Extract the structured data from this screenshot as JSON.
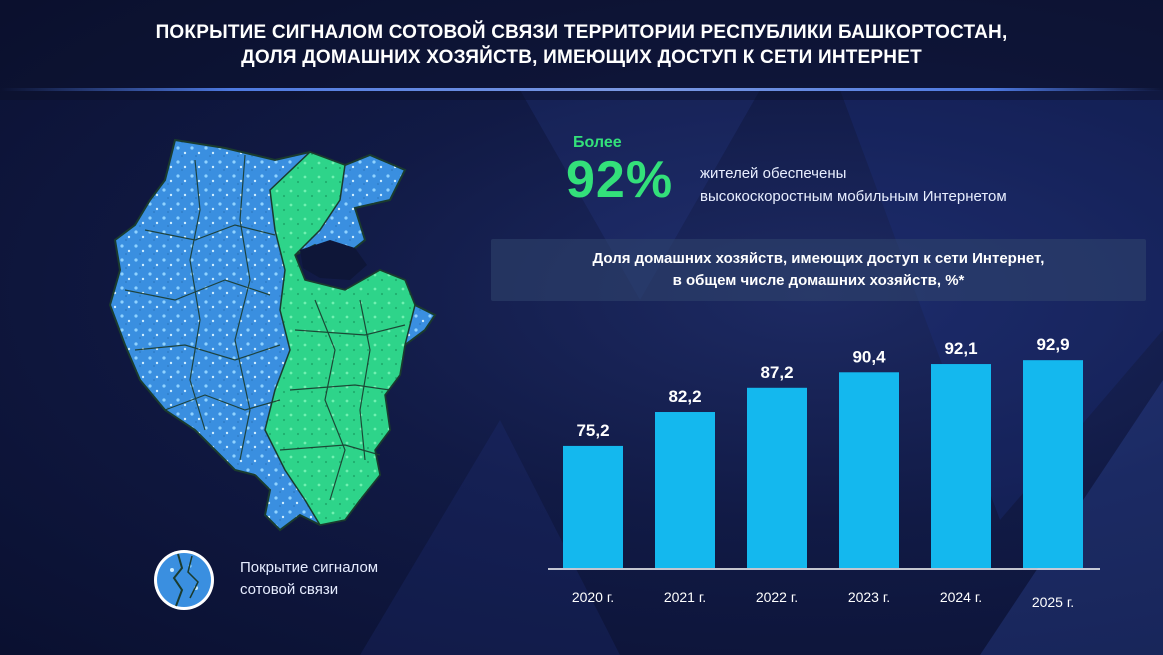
{
  "header": {
    "title_line1": "ПОКРЫТИЕ СИГНАЛОМ СОТОВОЙ СВЯЗИ ТЕРРИТОРИИ РЕСПУБЛИКИ БАШКОРТОСТАН,",
    "title_line2": "ДОЛЯ ДОМАШНИХ ХОЗЯЙСТВ, ИМЕЮЩИХ ДОСТУП К СЕТИ ИНТЕРНЕТ"
  },
  "map": {
    "legend_line1": "Покрытие сигналом",
    "legend_line2": "сотовой связи",
    "colors": {
      "coverage": "#3a8fe0",
      "highlight": "#2ed48a",
      "border": "#1a3b2e"
    }
  },
  "stat": {
    "prefix": "Более",
    "value": "92%",
    "text_line1": "жителей обеспечены",
    "text_line2": "высокоскоростным мобильным Интернетом",
    "color": "#33e07a"
  },
  "chart_data": {
    "type": "bar",
    "title_line1": "Доля домашних хозяйств, имеющих доступ к сети Интернет,",
    "title_line2": "в общем числе домашних хозяйств, %*",
    "categories": [
      "2020 г.",
      "2021 г.",
      "2022 г.",
      "2023 г.",
      "2024 г.",
      "2025 г."
    ],
    "values": [
      75.2,
      82.2,
      87.2,
      90.4,
      92.1,
      92.9
    ],
    "value_labels": [
      "75,2",
      "82,2",
      "87,2",
      "90,4",
      "92,1",
      "92,9"
    ],
    "bar_color": "#14b8ee",
    "ylim": [
      50,
      95
    ],
    "grid": false
  }
}
